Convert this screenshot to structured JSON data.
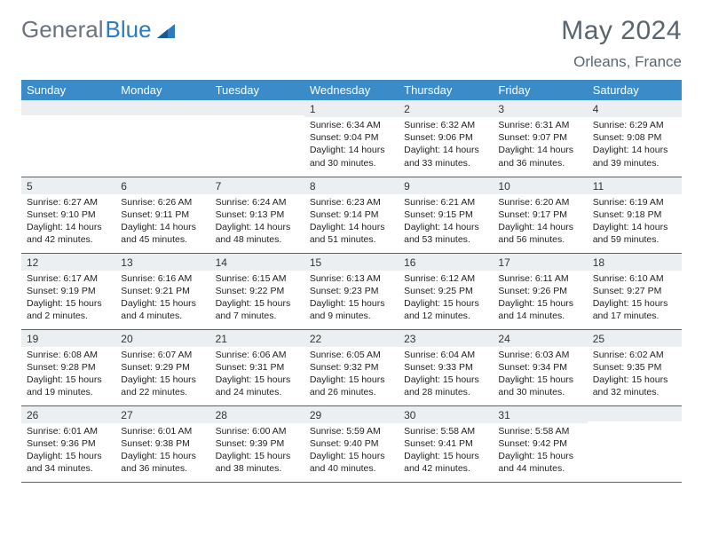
{
  "brand": {
    "name_a": "General",
    "name_b": "Blue"
  },
  "header": {
    "month": "May 2024",
    "location": "Orleans, France"
  },
  "colors": {
    "header_bg": "#3b8bc9",
    "header_text": "#ffffff",
    "daynum_bg": "#eceff1",
    "row_border": "#3b6a8f",
    "title_text": "#5a6570",
    "logo_gray": "#6b7280",
    "logo_blue": "#2b7bbf"
  },
  "weekdays": [
    "Sunday",
    "Monday",
    "Tuesday",
    "Wednesday",
    "Thursday",
    "Friday",
    "Saturday"
  ],
  "weeks": [
    [
      null,
      null,
      null,
      {
        "n": "1",
        "sr": "6:34 AM",
        "ss": "9:04 PM",
        "dl": "14 hours and 30 minutes."
      },
      {
        "n": "2",
        "sr": "6:32 AM",
        "ss": "9:06 PM",
        "dl": "14 hours and 33 minutes."
      },
      {
        "n": "3",
        "sr": "6:31 AM",
        "ss": "9:07 PM",
        "dl": "14 hours and 36 minutes."
      },
      {
        "n": "4",
        "sr": "6:29 AM",
        "ss": "9:08 PM",
        "dl": "14 hours and 39 minutes."
      }
    ],
    [
      {
        "n": "5",
        "sr": "6:27 AM",
        "ss": "9:10 PM",
        "dl": "14 hours and 42 minutes."
      },
      {
        "n": "6",
        "sr": "6:26 AM",
        "ss": "9:11 PM",
        "dl": "14 hours and 45 minutes."
      },
      {
        "n": "7",
        "sr": "6:24 AM",
        "ss": "9:13 PM",
        "dl": "14 hours and 48 minutes."
      },
      {
        "n": "8",
        "sr": "6:23 AM",
        "ss": "9:14 PM",
        "dl": "14 hours and 51 minutes."
      },
      {
        "n": "9",
        "sr": "6:21 AM",
        "ss": "9:15 PM",
        "dl": "14 hours and 53 minutes."
      },
      {
        "n": "10",
        "sr": "6:20 AM",
        "ss": "9:17 PM",
        "dl": "14 hours and 56 minutes."
      },
      {
        "n": "11",
        "sr": "6:19 AM",
        "ss": "9:18 PM",
        "dl": "14 hours and 59 minutes."
      }
    ],
    [
      {
        "n": "12",
        "sr": "6:17 AM",
        "ss": "9:19 PM",
        "dl": "15 hours and 2 minutes."
      },
      {
        "n": "13",
        "sr": "6:16 AM",
        "ss": "9:21 PM",
        "dl": "15 hours and 4 minutes."
      },
      {
        "n": "14",
        "sr": "6:15 AM",
        "ss": "9:22 PM",
        "dl": "15 hours and 7 minutes."
      },
      {
        "n": "15",
        "sr": "6:13 AM",
        "ss": "9:23 PM",
        "dl": "15 hours and 9 minutes."
      },
      {
        "n": "16",
        "sr": "6:12 AM",
        "ss": "9:25 PM",
        "dl": "15 hours and 12 minutes."
      },
      {
        "n": "17",
        "sr": "6:11 AM",
        "ss": "9:26 PM",
        "dl": "15 hours and 14 minutes."
      },
      {
        "n": "18",
        "sr": "6:10 AM",
        "ss": "9:27 PM",
        "dl": "15 hours and 17 minutes."
      }
    ],
    [
      {
        "n": "19",
        "sr": "6:08 AM",
        "ss": "9:28 PM",
        "dl": "15 hours and 19 minutes."
      },
      {
        "n": "20",
        "sr": "6:07 AM",
        "ss": "9:29 PM",
        "dl": "15 hours and 22 minutes."
      },
      {
        "n": "21",
        "sr": "6:06 AM",
        "ss": "9:31 PM",
        "dl": "15 hours and 24 minutes."
      },
      {
        "n": "22",
        "sr": "6:05 AM",
        "ss": "9:32 PM",
        "dl": "15 hours and 26 minutes."
      },
      {
        "n": "23",
        "sr": "6:04 AM",
        "ss": "9:33 PM",
        "dl": "15 hours and 28 minutes."
      },
      {
        "n": "24",
        "sr": "6:03 AM",
        "ss": "9:34 PM",
        "dl": "15 hours and 30 minutes."
      },
      {
        "n": "25",
        "sr": "6:02 AM",
        "ss": "9:35 PM",
        "dl": "15 hours and 32 minutes."
      }
    ],
    [
      {
        "n": "26",
        "sr": "6:01 AM",
        "ss": "9:36 PM",
        "dl": "15 hours and 34 minutes."
      },
      {
        "n": "27",
        "sr": "6:01 AM",
        "ss": "9:38 PM",
        "dl": "15 hours and 36 minutes."
      },
      {
        "n": "28",
        "sr": "6:00 AM",
        "ss": "9:39 PM",
        "dl": "15 hours and 38 minutes."
      },
      {
        "n": "29",
        "sr": "5:59 AM",
        "ss": "9:40 PM",
        "dl": "15 hours and 40 minutes."
      },
      {
        "n": "30",
        "sr": "5:58 AM",
        "ss": "9:41 PM",
        "dl": "15 hours and 42 minutes."
      },
      {
        "n": "31",
        "sr": "5:58 AM",
        "ss": "9:42 PM",
        "dl": "15 hours and 44 minutes."
      },
      null
    ]
  ],
  "labels": {
    "sunrise": "Sunrise:",
    "sunset": "Sunset:",
    "daylight": "Daylight:"
  }
}
